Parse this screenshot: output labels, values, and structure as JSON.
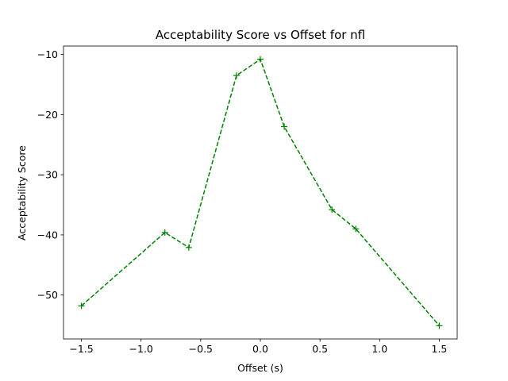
{
  "chart_data": {
    "type": "line",
    "title": "Acceptability Score vs Offset for nfl",
    "xlabel": "Offset (s)",
    "ylabel": "Acceptability Score",
    "xlim": [
      -1.65,
      1.65
    ],
    "ylim": [
      -57.3,
      -8.6
    ],
    "xticks": [
      -1.5,
      -1.0,
      -0.5,
      0.0,
      0.5,
      1.0,
      1.5
    ],
    "xtick_labels": [
      "−1.5",
      "−1.0",
      "−0.5",
      "0.0",
      "0.5",
      "1.0",
      "1.5"
    ],
    "yticks": [
      -10,
      -20,
      -30,
      -40,
      -50
    ],
    "ytick_labels": [
      "−10",
      "−20",
      "−30",
      "−40",
      "−50"
    ],
    "grid": false,
    "series": [
      {
        "color": "#008000",
        "linestyle": "dashed",
        "marker": "plus",
        "x": [
          -1.5,
          -0.8,
          -0.6,
          -0.2,
          0.0,
          0.2,
          0.6,
          0.8,
          1.5
        ],
        "y": [
          -51.8,
          -39.6,
          -42.1,
          -13.5,
          -10.8,
          -22.0,
          -35.8,
          -39.0,
          -55.1
        ]
      }
    ]
  }
}
